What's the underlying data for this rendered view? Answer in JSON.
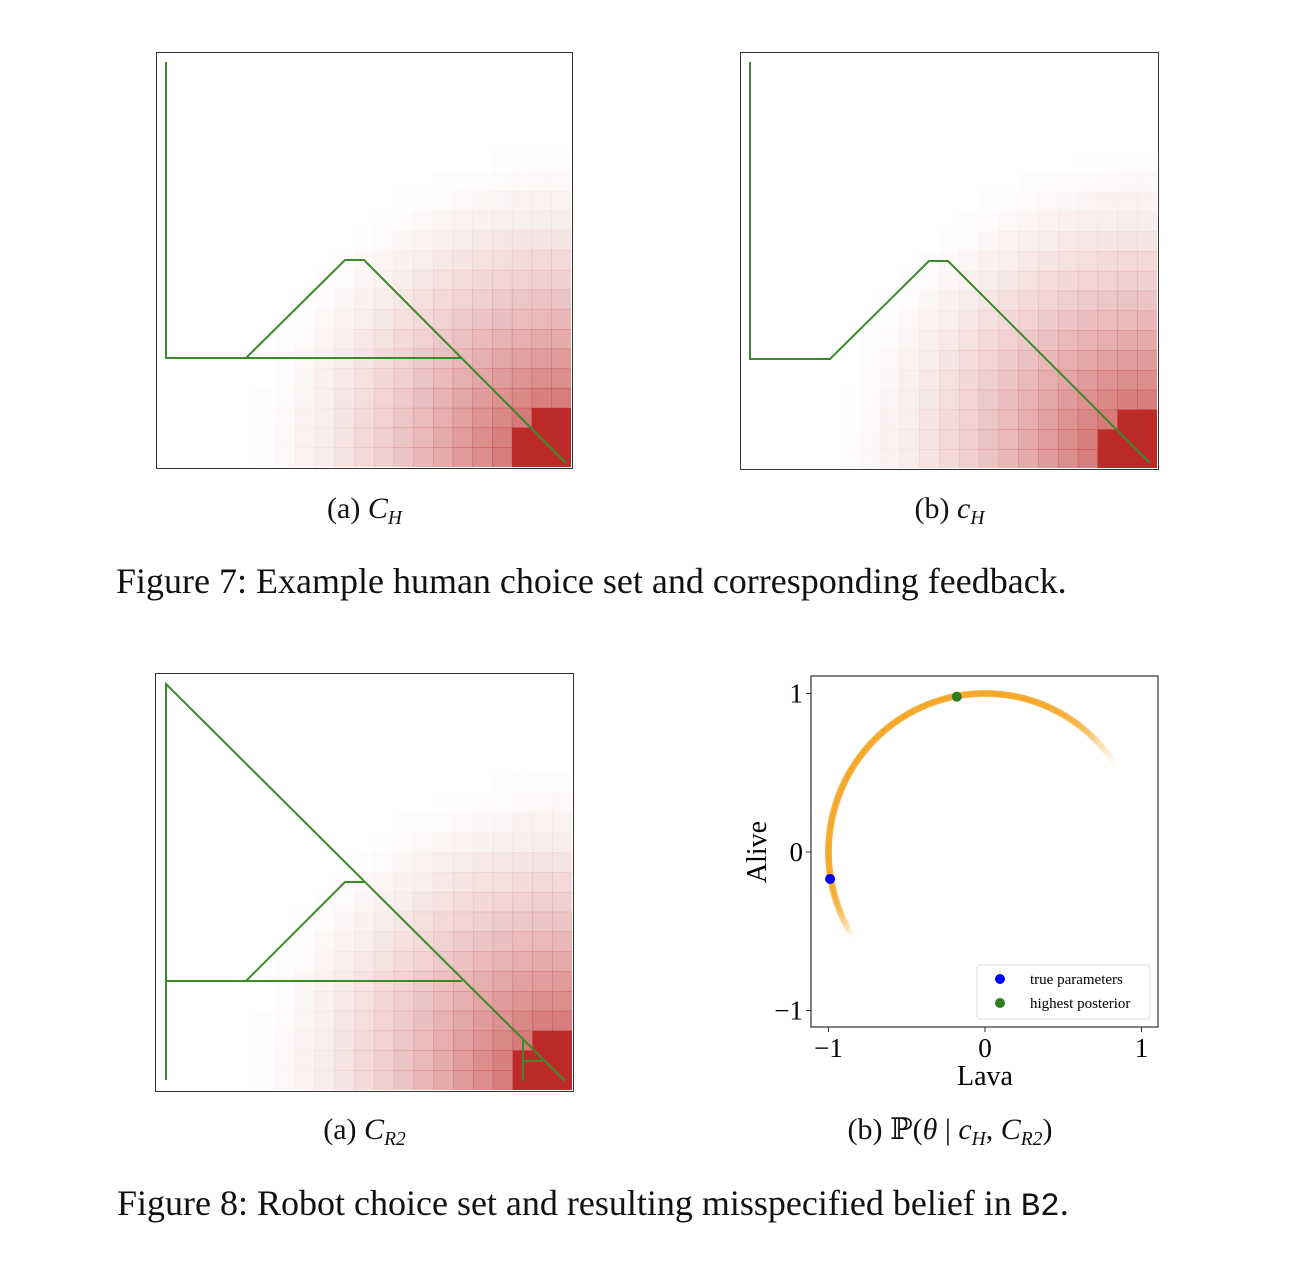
{
  "figure7": {
    "panel_a": {
      "label": "(a) ",
      "symbol": "C",
      "subscript": "H"
    },
    "panel_b": {
      "label": "(b) ",
      "symbol": "c",
      "subscript": "H"
    },
    "caption": "Figure 7: Example human choice set and corresponding feedback."
  },
  "figure8": {
    "panel_a": {
      "label": "(a) ",
      "symbol": "C",
      "subscript": "R2"
    },
    "panel_b": {
      "label": "(b) ",
      "prob": "ℙ(",
      "theta": "θ",
      "bar": " | ",
      "c": "c",
      "c_sub": "H",
      "comma": ", ",
      "C": "C",
      "C_sub": "R2",
      "close": ")"
    },
    "caption_pre": "Figure 8: Robot choice set and resulting misspecified belief in ",
    "caption_code": "B2",
    "caption_post": "."
  },
  "colors": {
    "path": "#3a8a2a",
    "heat": "#bd2a2a",
    "arc": "#f5a623",
    "true": "#0000ff",
    "best": "#2e7d1e"
  },
  "chart_data": {
    "type": "scatter",
    "xlabel": "Lava",
    "ylabel": "Alive",
    "xlim": [
      -1.1,
      1.1
    ],
    "ylim": [
      -1.1,
      1.1
    ],
    "xticks": [
      "−1",
      "0",
      "1"
    ],
    "yticks": [
      "−1",
      "0",
      "1"
    ],
    "xtick_values": [
      -1,
      0,
      1
    ],
    "ytick_values": [
      -1,
      0,
      1
    ],
    "posterior_arc": {
      "radius": 1,
      "angle_start_deg": 30,
      "angle_end_deg": 212,
      "peak_angle_deg": 100
    },
    "series": [
      {
        "name": "true parameters",
        "x": -0.99,
        "y": -0.17,
        "color": "#0000ff"
      },
      {
        "name": "highest posterior",
        "x": -0.18,
        "y": 0.98,
        "color": "#2e7d1e"
      }
    ],
    "legend": {
      "position": "bottom-right",
      "entries": [
        "true parameters",
        "highest posterior"
      ]
    },
    "grid": false
  }
}
